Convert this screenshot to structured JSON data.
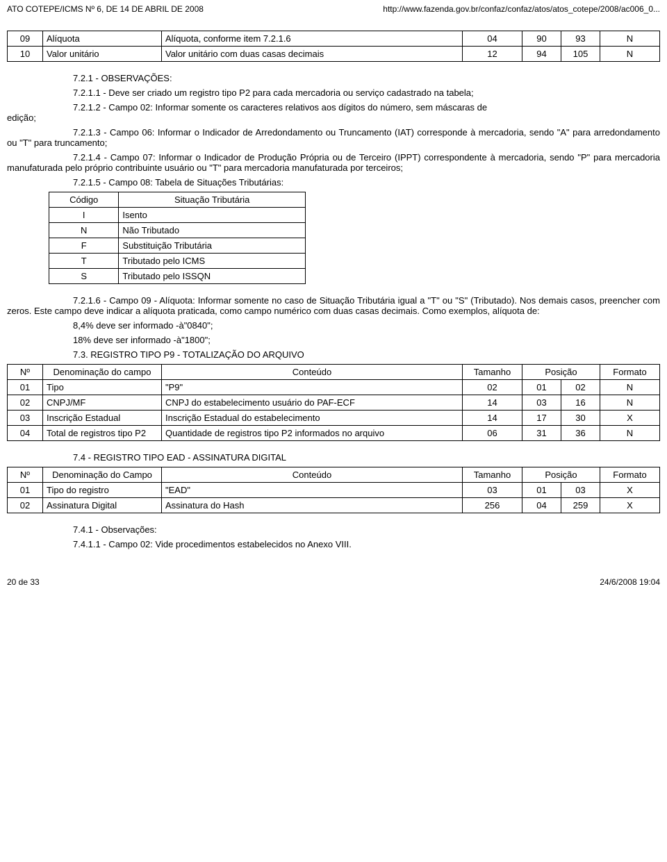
{
  "header": {
    "left": "ATO COTEPE/ICMS Nº 6, DE 14 DE ABRIL DE 2008",
    "right": "http://www.fazenda.gov.br/confaz/confaz/atos/atos_cotepe/2008/ac006_0..."
  },
  "table_top": {
    "rows": [
      {
        "n": "09",
        "denom": "Alíquota",
        "cont": "Alíquota, conforme item 7.2.1.6",
        "tam": "04",
        "p1": "90",
        "p2": "93",
        "fmt": "N"
      },
      {
        "n": "10",
        "denom": "Valor unitário",
        "cont": "Valor unitário com duas casas decimais",
        "tam": "12",
        "p1": "94",
        "p2": "105",
        "fmt": "N"
      }
    ]
  },
  "obs_title": "7.2.1 - OBSERVAÇÕES:",
  "obs_7211": "7.2.1.1 - Deve ser criado um registro tipo P2 para cada mercadoria ou serviço cadastrado na tabela;",
  "obs_7212_pre": "edição;",
  "obs_7212": "7.2.1.2 - Campo 02: Informar somente os caracteres relativos aos dígitos do número, sem máscaras de",
  "obs_7213": "7.2.1.3 - Campo 06: Informar o Indicador de Arredondamento ou Truncamento (IAT) corresponde à mercadoria, sendo \"A\" para arredondamento ou \"T\" para truncamento;",
  "obs_7214": "7.2.1.4 - Campo 07: Informar o Indicador de Produção Própria ou de Terceiro (IPPT) correspondente à mercadoria, sendo \"P\" para mercadoria manufaturada pelo próprio contribuinte usuário ou \"T\" para mercadoria manufaturada por terceiros;",
  "obs_7215": "7.2.1.5 - Campo 08: Tabela de Situações Tributárias:",
  "situacao_table": {
    "headers": [
      "Código",
      "Situação Tributária"
    ],
    "rows": [
      {
        "cod": "I",
        "sit": "Isento"
      },
      {
        "cod": "N",
        "sit": "Não Tributado"
      },
      {
        "cod": "F",
        "sit": "Substituição Tributária"
      },
      {
        "cod": "T",
        "sit": "Tributado pelo ICMS"
      },
      {
        "cod": "S",
        "sit": "Tributado pelo ISSQN"
      }
    ]
  },
  "obs_7216": "7.2.1.6 - Campo 09 - Alíquota: Informar somente no caso de Situação Tributária igual a \"T\" ou \"S\" (Tributado). Nos demais casos, preencher com zeros. Este campo deve indicar a alíquota praticada, como campo numérico com duas casas decimais. Como exemplos, alíquota de:",
  "ex1": "8,4% deve ser informado -à\"0840\";",
  "ex2": "18% deve ser informado -à\"1800\";",
  "sec73": "7.3. REGISTRO TIPO P9 - TOTALIZAÇÃO DO ARQUIVO",
  "table_p9": {
    "headers": [
      "Nº",
      "Denominação do campo",
      "Conteúdo",
      "Tamanho",
      "Posição",
      "Formato"
    ],
    "rows": [
      {
        "n": "01",
        "denom": "Tipo",
        "cont": "\"P9\"",
        "tam": "02",
        "p1": "01",
        "p2": "02",
        "fmt": "N"
      },
      {
        "n": "02",
        "denom": "CNPJ/MF",
        "cont": "CNPJ do estabelecimento usuário do PAF-ECF",
        "tam": "14",
        "p1": "03",
        "p2": "16",
        "fmt": "N"
      },
      {
        "n": "03",
        "denom": "Inscrição Estadual",
        "cont": "Inscrição Estadual do estabelecimento",
        "tam": "14",
        "p1": "17",
        "p2": "30",
        "fmt": "X"
      },
      {
        "n": "04",
        "denom": "Total de registros tipo P2",
        "cont": "Quantidade de registros tipo P2 informados no arquivo",
        "tam": "06",
        "p1": "31",
        "p2": "36",
        "fmt": "N"
      }
    ]
  },
  "sec74": "7.4 - REGISTRO TIPO EAD - ASSINATURA DIGITAL",
  "table_ead": {
    "headers": [
      "Nº",
      "Denominação do Campo",
      "Conteúdo",
      "Tamanho",
      "Posição",
      "Formato"
    ],
    "rows": [
      {
        "n": "01",
        "denom": "Tipo do registro",
        "cont": "\"EAD\"",
        "tam": "03",
        "p1": "01",
        "p2": "03",
        "fmt": "X"
      },
      {
        "n": "02",
        "denom": "Assinatura Digital",
        "cont": "Assinatura do Hash",
        "tam": "256",
        "p1": "04",
        "p2": "259",
        "fmt": "X"
      }
    ]
  },
  "obs_741": "7.4.1 - Observações:",
  "obs_7411": "7.4.1.1 - Campo 02: Vide procedimentos estabelecidos no Anexo VIII.",
  "footer": {
    "left": "20 de 33",
    "right": "24/6/2008 19:04"
  }
}
